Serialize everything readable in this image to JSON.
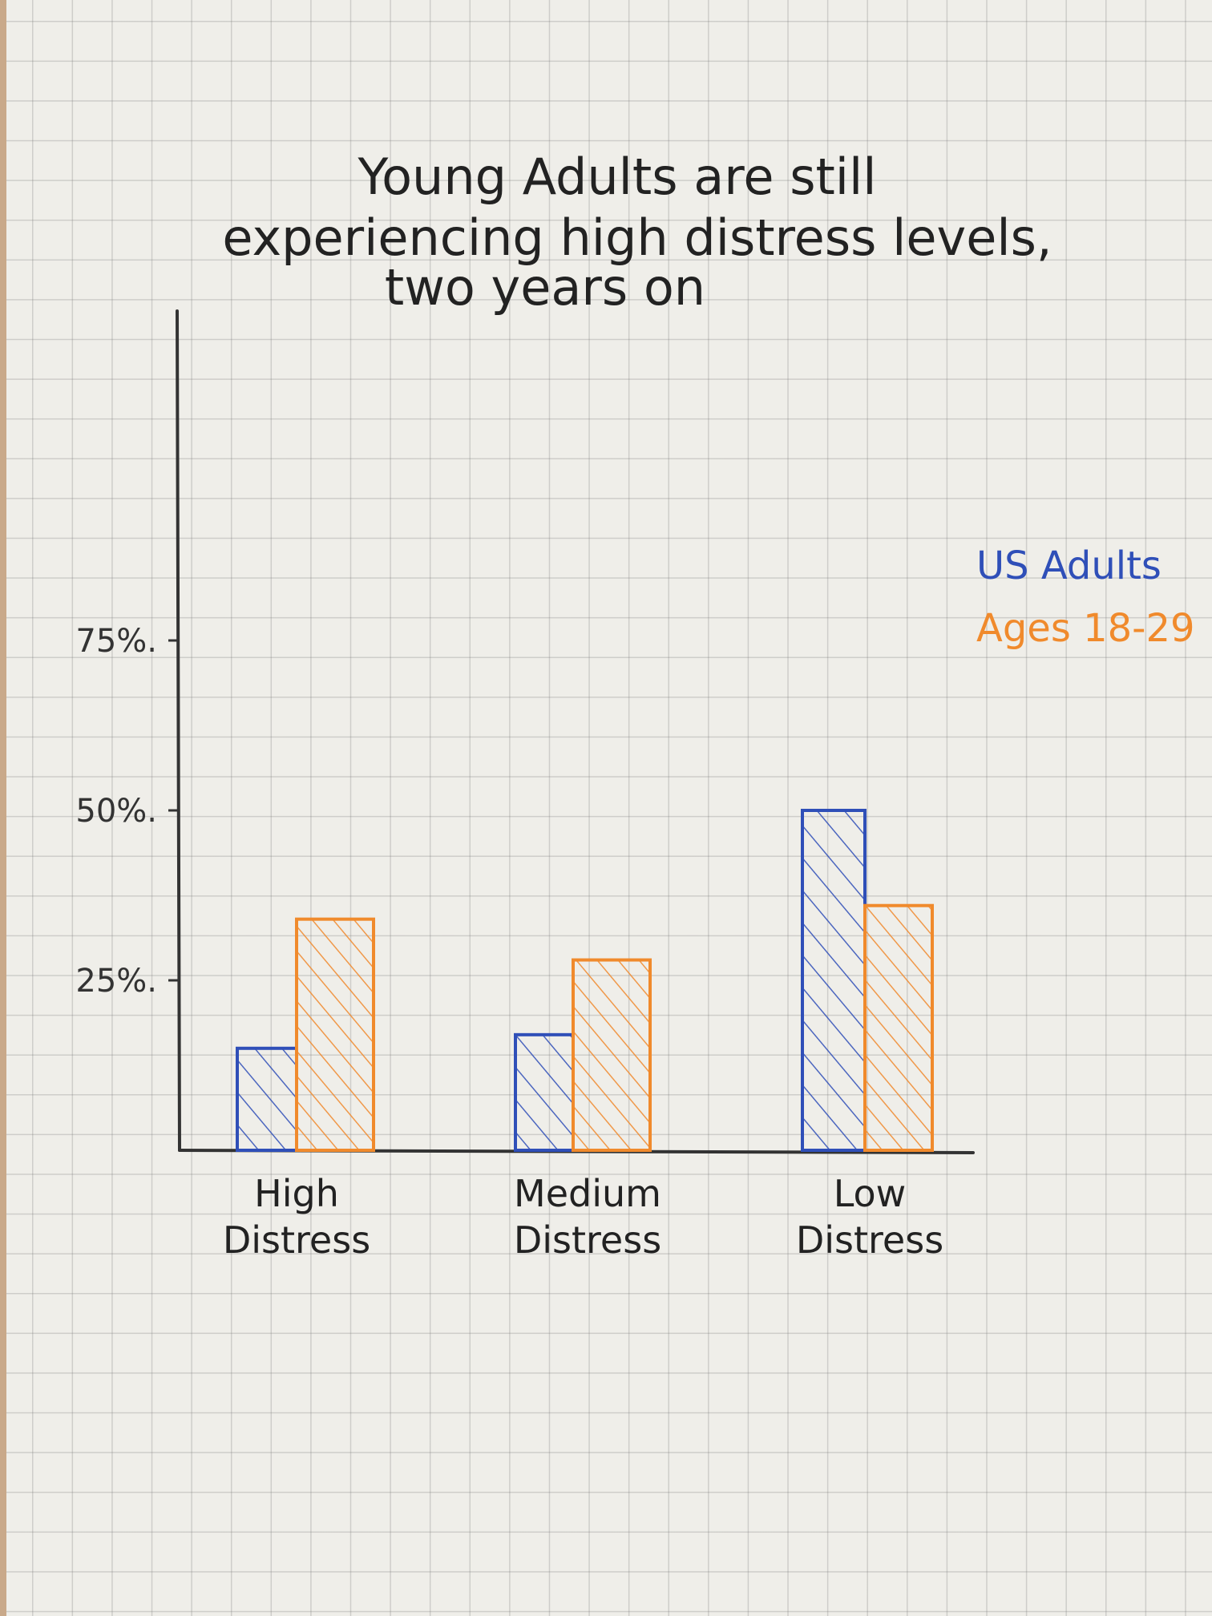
{
  "chart_data": {
    "type": "bar",
    "title_lines": [
      "Young Adults are still",
      "experiencing high distress levels,",
      "two years on"
    ],
    "categories": [
      [
        "High",
        "Distress"
      ],
      [
        "Medium",
        "Distress"
      ],
      [
        "Low",
        "Distress"
      ]
    ],
    "series": [
      {
        "name": "US Adults",
        "color": "#2f4fb8",
        "values": [
          15,
          17,
          50
        ]
      },
      {
        "name": "Ages 18-29",
        "color": "#f08a2c",
        "values": [
          34,
          28,
          36
        ]
      }
    ],
    "y_ticks": [
      {
        "value": 25,
        "label": "25%."
      },
      {
        "value": 50,
        "label": "50%."
      },
      {
        "value": 75,
        "label": "75%."
      }
    ],
    "ylim": [
      0,
      100
    ],
    "legend_position": "right",
    "grid": true
  }
}
